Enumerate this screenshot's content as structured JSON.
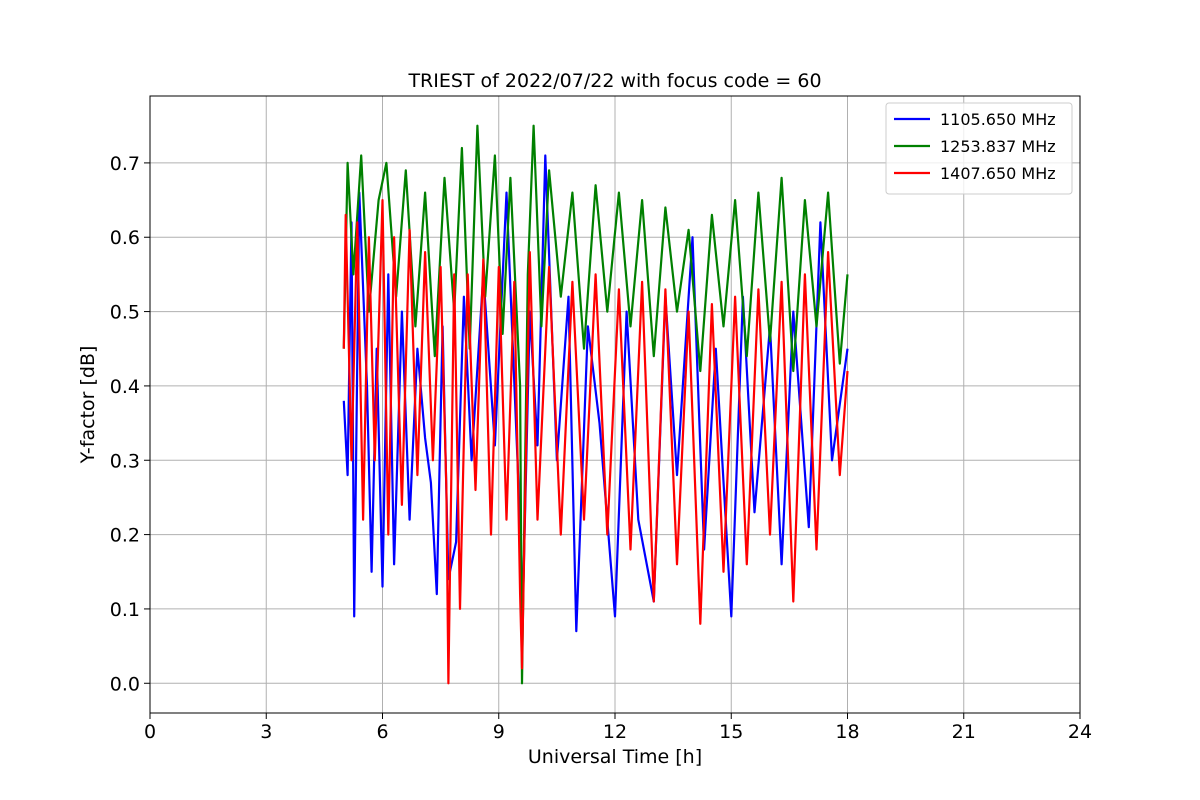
{
  "chart_data": {
    "type": "line",
    "title": "TRIEST of 2022/07/22 with focus code = 60",
    "xlabel": "Universal Time [h]",
    "ylabel": "Y-factor [dB]",
    "xlim": [
      0,
      24
    ],
    "ylim": [
      -0.04,
      0.79
    ],
    "xticks": [
      0,
      3,
      6,
      9,
      12,
      15,
      18,
      21,
      24
    ],
    "yticks": [
      0.0,
      0.1,
      0.2,
      0.3,
      0.4,
      0.5,
      0.6,
      0.7
    ],
    "xtick_labels": [
      "0",
      "3",
      "6",
      "9",
      "12",
      "15",
      "18",
      "21",
      "24"
    ],
    "ytick_labels": [
      "0.0",
      "0.1",
      "0.2",
      "0.3",
      "0.4",
      "0.5",
      "0.6",
      "0.7"
    ],
    "grid": true,
    "legend_position": "top-right",
    "series": [
      {
        "name": "1105.650 MHz",
        "color": "#0000ff",
        "x": [
          5.0,
          5.1,
          5.2,
          5.27,
          5.4,
          5.6,
          5.72,
          5.85,
          6.0,
          6.15,
          6.3,
          6.5,
          6.7,
          6.9,
          7.1,
          7.25,
          7.4,
          7.55,
          7.7,
          7.9,
          8.1,
          8.3,
          8.6,
          8.9,
          9.2,
          9.5,
          9.62,
          9.8,
          10.0,
          10.2,
          10.5,
          10.8,
          11.0,
          11.3,
          11.6,
          12.0,
          12.3,
          12.6,
          13.0,
          13.3,
          13.6,
          14.0,
          14.3,
          14.6,
          15.0,
          15.3,
          15.6,
          16.0,
          16.3,
          16.6,
          17.0,
          17.3,
          17.6,
          18.0
        ],
        "y": [
          0.38,
          0.28,
          0.62,
          0.09,
          0.66,
          0.4,
          0.15,
          0.45,
          0.13,
          0.55,
          0.16,
          0.5,
          0.22,
          0.45,
          0.33,
          0.27,
          0.12,
          0.48,
          0.14,
          0.19,
          0.52,
          0.3,
          0.55,
          0.32,
          0.66,
          0.28,
          0.1,
          0.5,
          0.32,
          0.71,
          0.3,
          0.52,
          0.07,
          0.48,
          0.35,
          0.09,
          0.5,
          0.22,
          0.11,
          0.52,
          0.28,
          0.6,
          0.18,
          0.45,
          0.09,
          0.52,
          0.23,
          0.48,
          0.16,
          0.5,
          0.21,
          0.62,
          0.3,
          0.45
        ]
      },
      {
        "name": "1253.837 MHz",
        "color": "#008000",
        "x": [
          5.0,
          5.1,
          5.25,
          5.45,
          5.65,
          5.9,
          6.1,
          6.35,
          6.6,
          6.85,
          7.1,
          7.35,
          7.6,
          7.85,
          8.05,
          8.25,
          8.45,
          8.65,
          8.9,
          9.1,
          9.3,
          9.55,
          9.6,
          9.75,
          9.9,
          10.1,
          10.3,
          10.6,
          10.9,
          11.2,
          11.5,
          11.8,
          12.1,
          12.4,
          12.7,
          13.0,
          13.3,
          13.6,
          13.9,
          14.2,
          14.5,
          14.8,
          15.1,
          15.4,
          15.7,
          16.0,
          16.3,
          16.6,
          16.9,
          17.2,
          17.5,
          17.8,
          18.0
        ],
        "y": [
          0.45,
          0.7,
          0.55,
          0.71,
          0.5,
          0.65,
          0.7,
          0.52,
          0.69,
          0.48,
          0.66,
          0.44,
          0.68,
          0.5,
          0.72,
          0.45,
          0.75,
          0.52,
          0.71,
          0.47,
          0.68,
          0.4,
          0.0,
          0.55,
          0.75,
          0.48,
          0.69,
          0.52,
          0.66,
          0.45,
          0.67,
          0.5,
          0.66,
          0.48,
          0.65,
          0.44,
          0.64,
          0.5,
          0.61,
          0.42,
          0.63,
          0.48,
          0.65,
          0.44,
          0.66,
          0.46,
          0.68,
          0.42,
          0.65,
          0.48,
          0.66,
          0.43,
          0.55
        ]
      },
      {
        "name": "1407.650 MHz",
        "color": "#ff0000",
        "x": [
          5.0,
          5.05,
          5.2,
          5.35,
          5.5,
          5.65,
          5.8,
          6.0,
          6.15,
          6.3,
          6.5,
          6.7,
          6.9,
          7.1,
          7.3,
          7.5,
          7.65,
          7.7,
          7.85,
          8.0,
          8.2,
          8.4,
          8.6,
          8.8,
          9.0,
          9.2,
          9.4,
          9.55,
          9.6,
          9.8,
          10.0,
          10.3,
          10.6,
          10.9,
          11.2,
          11.5,
          11.8,
          12.1,
          12.4,
          12.7,
          13.0,
          13.3,
          13.6,
          13.9,
          14.2,
          14.5,
          14.8,
          15.1,
          15.4,
          15.7,
          16.0,
          16.3,
          16.6,
          16.9,
          17.2,
          17.5,
          17.8,
          18.0
        ],
        "y": [
          0.45,
          0.63,
          0.3,
          0.62,
          0.22,
          0.6,
          0.3,
          0.65,
          0.2,
          0.6,
          0.24,
          0.61,
          0.28,
          0.58,
          0.3,
          0.56,
          0.26,
          0.0,
          0.55,
          0.1,
          0.55,
          0.26,
          0.57,
          0.2,
          0.56,
          0.22,
          0.54,
          0.12,
          0.02,
          0.58,
          0.22,
          0.56,
          0.2,
          0.54,
          0.22,
          0.55,
          0.2,
          0.53,
          0.18,
          0.54,
          0.11,
          0.53,
          0.16,
          0.5,
          0.08,
          0.51,
          0.15,
          0.52,
          0.16,
          0.53,
          0.2,
          0.54,
          0.11,
          0.55,
          0.18,
          0.58,
          0.28,
          0.42
        ]
      }
    ]
  }
}
